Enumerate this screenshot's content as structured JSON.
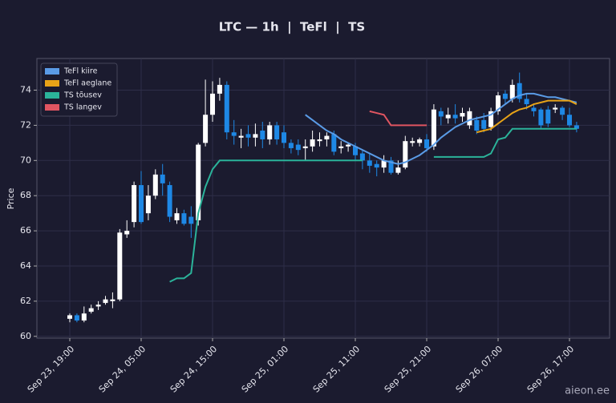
{
  "chart_data": {
    "type": "candlestick",
    "title": "LTC — 1h  |  TeFl  |  TS",
    "y_label": "Price",
    "watermark": "aieon.ee",
    "categories": [
      "Sep 23, 19:00",
      null,
      null,
      null,
      null,
      null,
      null,
      null,
      null,
      null,
      "Sep 24, 05:00",
      null,
      null,
      null,
      null,
      null,
      null,
      null,
      null,
      null,
      "Sep 24, 15:00",
      null,
      null,
      null,
      null,
      null,
      null,
      null,
      null,
      null,
      "Sep 25, 01:00",
      null,
      null,
      null,
      null,
      null,
      null,
      null,
      null,
      null,
      "Sep 25, 11:00",
      null,
      null,
      null,
      null,
      null,
      null,
      null,
      null,
      null,
      "Sep 25, 21:00",
      null,
      null,
      null,
      null,
      null,
      null,
      null,
      null,
      null,
      "Sep 26, 07:00",
      null,
      null,
      null,
      null,
      null,
      null,
      null,
      null,
      null,
      "Sep 26, 17:00",
      null
    ],
    "open": [
      61.0,
      61.2,
      60.9,
      61.4,
      61.7,
      61.9,
      62.0,
      62.1,
      65.8,
      66.5,
      68.6,
      67.0,
      68.0,
      69.2,
      68.6,
      66.6,
      67.0,
      66.8,
      66.6,
      71.0,
      72.6,
      73.8,
      74.3,
      71.6,
      71.3,
      71.5,
      71.3,
      71.7,
      71.2,
      72.0,
      71.6,
      71.0,
      70.9,
      70.7,
      70.8,
      71.1,
      71.2,
      71.5,
      70.7,
      70.8,
      70.8,
      70.4,
      70.0,
      69.8,
      69.6,
      70.0,
      69.3,
      69.6,
      71.0,
      71.0,
      71.2,
      70.8,
      72.8,
      72.4,
      72.6,
      72.5,
      72.0,
      72.3,
      72.3,
      71.9,
      72.8,
      73.8,
      73.5,
      74.4,
      73.5,
      73.0,
      72.9,
      72.9,
      72.9,
      73.0,
      72.6,
      72.0
    ],
    "high": [
      61.3,
      61.3,
      61.7,
      61.8,
      62.0,
      62.3,
      62.5,
      66.1,
      66.6,
      68.8,
      69.4,
      68.6,
      69.5,
      69.8,
      68.8,
      67.3,
      67.2,
      67.4,
      71.0,
      74.6,
      74.5,
      74.7,
      74.5,
      72.3,
      71.8,
      72.0,
      72.1,
      72.2,
      72.2,
      72.2,
      72.0,
      71.2,
      71.2,
      71.2,
      71.7,
      71.6,
      71.6,
      71.7,
      71.1,
      71.0,
      71.0,
      70.6,
      70.4,
      70.0,
      70.3,
      70.2,
      70.0,
      71.4,
      71.3,
      71.3,
      71.5,
      73.2,
      73.0,
      73.0,
      73.2,
      73.0,
      73.0,
      72.5,
      72.7,
      73.0,
      73.9,
      74.0,
      74.6,
      75.0,
      73.8,
      73.2,
      73.0,
      73.1,
      73.2,
      73.1,
      73.0,
      72.2
    ],
    "low": [
      60.8,
      60.8,
      60.8,
      61.3,
      61.5,
      61.8,
      61.6,
      62.0,
      65.6,
      66.2,
      66.4,
      66.6,
      67.8,
      68.0,
      66.5,
      66.4,
      66.3,
      65.6,
      66.3,
      70.8,
      72.2,
      73.4,
      71.2,
      70.9,
      70.7,
      70.8,
      70.8,
      70.7,
      70.9,
      70.9,
      70.7,
      70.4,
      70.3,
      70.0,
      70.5,
      70.8,
      70.8,
      70.3,
      70.4,
      70.5,
      70.0,
      69.5,
      69.3,
      69.1,
      69.3,
      69.2,
      69.2,
      69.5,
      70.8,
      70.8,
      70.5,
      70.6,
      72.0,
      72.1,
      72.1,
      72.2,
      71.8,
      71.5,
      71.6,
      71.7,
      72.6,
      73.2,
      73.3,
      73.3,
      72.9,
      72.5,
      71.8,
      71.9,
      72.7,
      72.3,
      71.9,
      71.6
    ],
    "close": [
      61.2,
      60.9,
      61.3,
      61.6,
      61.8,
      62.1,
      62.1,
      65.9,
      66.0,
      68.6,
      66.5,
      68.0,
      69.2,
      68.7,
      66.8,
      67.0,
      66.4,
      66.4,
      70.9,
      72.6,
      73.8,
      74.3,
      71.6,
      71.4,
      71.4,
      71.3,
      71.5,
      71.2,
      72.0,
      71.2,
      71.0,
      70.7,
      70.6,
      70.8,
      71.2,
      71.2,
      71.4,
      70.5,
      70.8,
      70.9,
      70.3,
      70.0,
      69.7,
      69.6,
      70.0,
      69.3,
      69.6,
      71.1,
      71.1,
      71.2,
      70.7,
      72.9,
      72.5,
      72.6,
      72.4,
      72.7,
      72.8,
      71.7,
      71.8,
      72.8,
      73.7,
      73.5,
      74.3,
      73.5,
      73.2,
      72.8,
      72.0,
      72.1,
      73.0,
      72.6,
      72.0,
      71.8
    ],
    "up_color": "#ffffff",
    "down_color": "#1e88e5",
    "series": [
      {
        "name": "TeFl kiire",
        "color": "#5a9be6",
        "values": [
          null,
          null,
          null,
          null,
          null,
          null,
          null,
          null,
          null,
          null,
          null,
          null,
          null,
          null,
          null,
          null,
          null,
          null,
          null,
          null,
          null,
          null,
          null,
          null,
          null,
          null,
          null,
          null,
          null,
          null,
          null,
          null,
          null,
          72.6,
          72.3,
          72.0,
          71.7,
          71.5,
          71.2,
          71.0,
          70.8,
          70.6,
          70.4,
          70.2,
          70.0,
          69.9,
          69.8,
          69.9,
          70.1,
          70.3,
          70.6,
          70.9,
          71.3,
          71.6,
          71.9,
          72.1,
          72.3,
          72.4,
          72.5,
          72.6,
          72.9,
          73.2,
          73.5,
          73.7,
          73.8,
          73.8,
          73.7,
          73.6,
          73.6,
          73.5,
          73.4,
          73.3
        ]
      },
      {
        "name": "TeFl aeglane",
        "color": "#e8a317",
        "values": [
          null,
          null,
          null,
          null,
          null,
          null,
          null,
          null,
          null,
          null,
          null,
          null,
          null,
          null,
          null,
          null,
          null,
          null,
          null,
          null,
          null,
          null,
          null,
          null,
          null,
          null,
          null,
          null,
          null,
          null,
          null,
          null,
          null,
          null,
          null,
          null,
          null,
          null,
          null,
          null,
          null,
          null,
          null,
          null,
          null,
          null,
          null,
          null,
          null,
          null,
          null,
          null,
          null,
          null,
          null,
          null,
          null,
          71.6,
          71.7,
          71.8,
          72.1,
          72.4,
          72.7,
          72.9,
          73.0,
          73.2,
          73.3,
          73.4,
          73.4,
          73.4,
          73.4,
          73.2
        ]
      },
      {
        "name": "TS tõusev",
        "color": "#2bb39a",
        "values": [
          null,
          null,
          null,
          null,
          null,
          null,
          null,
          null,
          null,
          null,
          null,
          null,
          null,
          null,
          63.1,
          63.3,
          63.3,
          63.6,
          67.0,
          68.5,
          69.5,
          70.0,
          70.0,
          70.0,
          70.0,
          70.0,
          70.0,
          70.0,
          70.0,
          70.0,
          70.0,
          70.0,
          70.0,
          70.0,
          70.0,
          70.0,
          70.0,
          70.0,
          70.0,
          70.0,
          70.0,
          70.0,
          null,
          null,
          null,
          null,
          null,
          null,
          null,
          null,
          null,
          70.2,
          70.2,
          70.2,
          70.2,
          70.2,
          70.2,
          70.2,
          70.2,
          70.4,
          71.2,
          71.3,
          71.8,
          71.8,
          71.8,
          71.8,
          71.8,
          71.8,
          71.8,
          71.8,
          71.8,
          71.8
        ]
      },
      {
        "name": "TS langev",
        "color": "#e05561",
        "values": [
          null,
          null,
          null,
          null,
          null,
          null,
          null,
          null,
          null,
          null,
          null,
          null,
          null,
          null,
          null,
          null,
          null,
          null,
          null,
          null,
          null,
          null,
          null,
          null,
          null,
          null,
          null,
          null,
          null,
          null,
          null,
          null,
          null,
          null,
          null,
          null,
          null,
          null,
          null,
          null,
          null,
          null,
          72.8,
          72.7,
          72.6,
          72.0,
          72.0,
          72.0,
          72.0,
          72.0,
          72.0,
          null,
          null,
          null,
          null,
          null,
          null,
          null,
          null,
          null,
          null,
          null,
          null,
          null,
          null,
          null,
          null,
          null,
          null,
          null,
          null,
          null
        ]
      }
    ],
    "ylim": [
      59.9,
      75.8
    ],
    "yticks": [
      60,
      62,
      64,
      66,
      68,
      70,
      72,
      74
    ],
    "grid": true,
    "legend": "upper left"
  }
}
